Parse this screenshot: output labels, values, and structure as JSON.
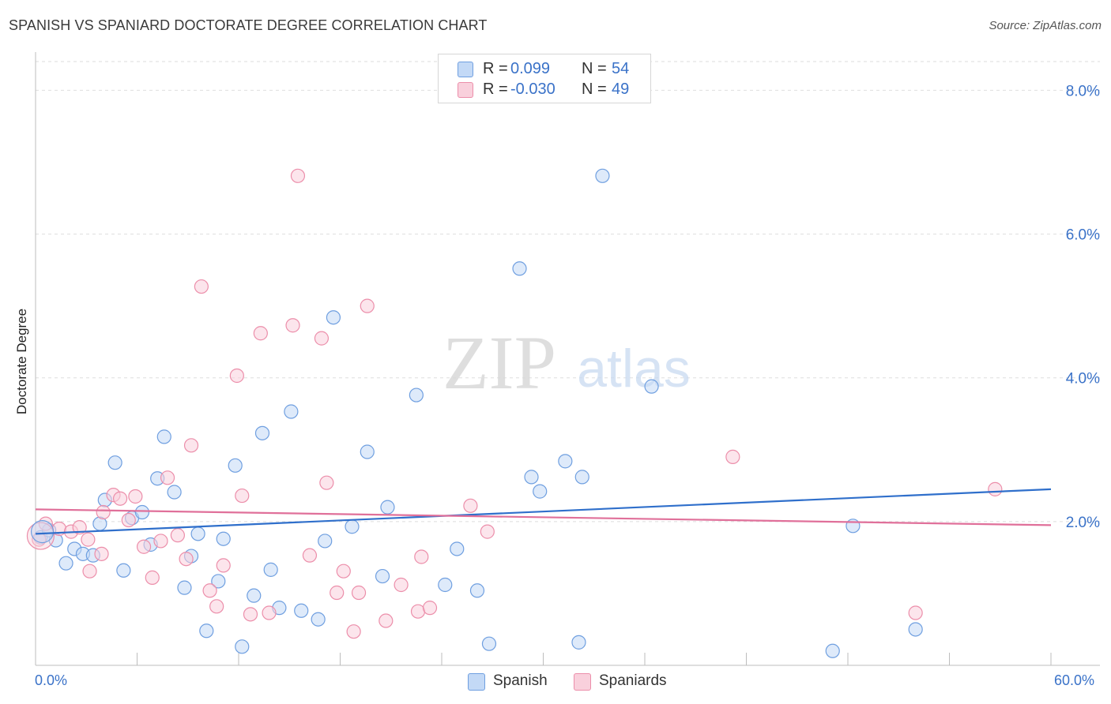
{
  "header": {
    "title": "SPANISH VS SPANIARD DOCTORATE DEGREE CORRELATION CHART",
    "source": "Source: ZipAtlas.com"
  },
  "watermark": {
    "zip": "ZIP",
    "atlas": "atlas"
  },
  "correlation": [
    {
      "label": "R =",
      "r": "0.099",
      "n_label": "N =",
      "n": "54",
      "color": "#a9c9f3"
    },
    {
      "label": "R =",
      "r": "-0.030",
      "n_label": "N =",
      "n": "49",
      "color": "#f7b8cb"
    }
  ],
  "legend": [
    {
      "name": "Spanish",
      "color": "#a9c9f3"
    },
    {
      "name": "Spaniards",
      "color": "#f7b8cb"
    }
  ],
  "chart_data": {
    "type": "scatter",
    "title": "SPANISH VS SPANIARD DOCTORATE DEGREE CORRELATION CHART",
    "xlabel": "",
    "ylabel": "Doctorate Degree",
    "xlim": [
      0,
      60
    ],
    "ylim": [
      0,
      8.4
    ],
    "x_tick_labels": [
      "0.0%",
      "60.0%"
    ],
    "y_ticks": [
      2,
      4,
      6,
      8
    ],
    "y_tick_labels": [
      "2.0%",
      "4.0%",
      "6.0%",
      "8.0%"
    ],
    "grid": true,
    "series": [
      {
        "name": "Spanish",
        "color": "#6f9fe0",
        "fill": "#c3d9f6",
        "trend": {
          "x": [
            0,
            60
          ],
          "y": [
            1.83,
            2.45
          ],
          "color": "#2f6fcb"
        },
        "points": [
          [
            0.3,
            1.78
          ],
          [
            0.8,
            1.88
          ],
          [
            1.2,
            1.74
          ],
          [
            1.8,
            1.42
          ],
          [
            2.3,
            1.62
          ],
          [
            2.8,
            1.55
          ],
          [
            3.4,
            1.53
          ],
          [
            3.8,
            1.97
          ],
          [
            4.1,
            2.3
          ],
          [
            4.7,
            2.82
          ],
          [
            5.2,
            1.32
          ],
          [
            5.7,
            2.05
          ],
          [
            6.3,
            2.13
          ],
          [
            6.8,
            1.68
          ],
          [
            7.2,
            2.6
          ],
          [
            7.6,
            3.18
          ],
          [
            8.2,
            2.41
          ],
          [
            8.8,
            1.08
          ],
          [
            9.2,
            1.52
          ],
          [
            9.6,
            1.83
          ],
          [
            10.1,
            0.48
          ],
          [
            10.8,
            1.17
          ],
          [
            11.1,
            1.76
          ],
          [
            11.8,
            2.78
          ],
          [
            12.2,
            0.26
          ],
          [
            12.9,
            0.97
          ],
          [
            13.4,
            3.23
          ],
          [
            13.9,
            1.33
          ],
          [
            14.4,
            0.8
          ],
          [
            15.1,
            3.53
          ],
          [
            15.7,
            0.76
          ],
          [
            16.7,
            0.64
          ],
          [
            17.1,
            1.73
          ],
          [
            17.6,
            4.84
          ],
          [
            18.7,
            1.93
          ],
          [
            19.6,
            2.97
          ],
          [
            20.5,
            1.24
          ],
          [
            20.8,
            2.2
          ],
          [
            22.5,
            3.76
          ],
          [
            24.2,
            1.12
          ],
          [
            24.9,
            1.62
          ],
          [
            26.1,
            1.04
          ],
          [
            26.8,
            0.3
          ],
          [
            28.6,
            5.52
          ],
          [
            29.3,
            2.62
          ],
          [
            29.8,
            2.42
          ],
          [
            31.3,
            2.84
          ],
          [
            32.1,
            0.32
          ],
          [
            32.3,
            2.62
          ],
          [
            33.5,
            6.81
          ],
          [
            36.4,
            3.88
          ],
          [
            47.1,
            0.2
          ],
          [
            48.3,
            1.94
          ],
          [
            52.0,
            0.5
          ]
        ]
      },
      {
        "name": "Spaniards",
        "color": "#ec8eaa",
        "fill": "#f9d0dc",
        "trend": {
          "x": [
            0,
            60
          ],
          "y": [
            2.17,
            1.95
          ],
          "color": "#e0709a"
        },
        "points": [
          [
            0.2,
            1.75
          ],
          [
            0.6,
            1.97
          ],
          [
            1.4,
            1.9
          ],
          [
            2.1,
            1.86
          ],
          [
            2.6,
            1.92
          ],
          [
            3.2,
            1.31
          ],
          [
            3.1,
            1.75
          ],
          [
            3.9,
            1.55
          ],
          [
            4.0,
            2.13
          ],
          [
            4.6,
            2.37
          ],
          [
            5.0,
            2.32
          ],
          [
            5.5,
            2.02
          ],
          [
            5.9,
            2.35
          ],
          [
            6.4,
            1.65
          ],
          [
            6.9,
            1.22
          ],
          [
            7.4,
            1.73
          ],
          [
            7.8,
            2.61
          ],
          [
            8.4,
            1.81
          ],
          [
            8.9,
            1.48
          ],
          [
            9.2,
            3.06
          ],
          [
            9.8,
            5.27
          ],
          [
            10.3,
            1.04
          ],
          [
            10.7,
            0.82
          ],
          [
            11.1,
            1.39
          ],
          [
            11.9,
            4.03
          ],
          [
            12.2,
            2.36
          ],
          [
            12.7,
            0.71
          ],
          [
            13.3,
            4.62
          ],
          [
            13.8,
            0.73
          ],
          [
            15.2,
            4.73
          ],
          [
            15.5,
            6.81
          ],
          [
            16.2,
            1.53
          ],
          [
            16.9,
            4.55
          ],
          [
            17.2,
            2.54
          ],
          [
            17.8,
            1.01
          ],
          [
            18.2,
            1.31
          ],
          [
            18.8,
            0.47
          ],
          [
            19.1,
            1.01
          ],
          [
            19.6,
            5.0
          ],
          [
            20.7,
            0.62
          ],
          [
            21.6,
            1.12
          ],
          [
            22.6,
            0.75
          ],
          [
            22.8,
            1.51
          ],
          [
            23.3,
            0.8
          ],
          [
            25.7,
            2.22
          ],
          [
            26.7,
            1.86
          ],
          [
            41.2,
            2.9
          ],
          [
            52.0,
            0.73
          ],
          [
            56.7,
            2.45
          ]
        ]
      }
    ]
  }
}
